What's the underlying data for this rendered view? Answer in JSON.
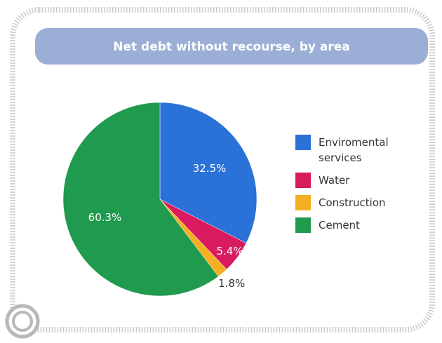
{
  "chart_data": {
    "type": "pie",
    "title": "Net debt without recourse, by area",
    "categories": [
      "Enviromental services",
      "Water",
      "Construction",
      "Cement"
    ],
    "values": [
      32.5,
      5.4,
      1.8,
      60.3
    ],
    "value_labels": [
      "32.5%",
      "5.4%",
      "1.8%",
      "60.3%"
    ],
    "colors": [
      "#2a72d8",
      "#d81b5e",
      "#f4b022",
      "#1f9a4e"
    ]
  }
}
